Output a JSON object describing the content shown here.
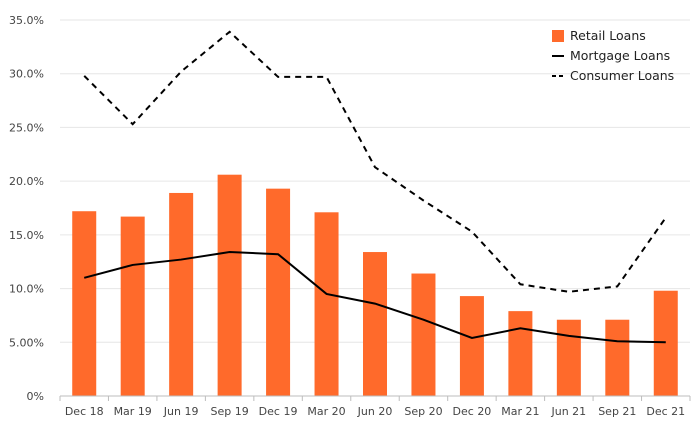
{
  "chart_data": {
    "type": "bar",
    "categories": [
      "Dec 18",
      "Mar 19",
      "Jun 19",
      "Sep 19",
      "Dec 19",
      "Mar 20",
      "Jun 20",
      "Sep 20",
      "Dec 20",
      "Mar 21",
      "Jun 21",
      "Sep 21",
      "Dec 21"
    ],
    "ylim": [
      0,
      35
    ],
    "yticks": [
      "0%",
      "5.00%",
      "10.0%",
      "15.0%",
      "20.0%",
      "25.0%",
      "30.0%",
      "35.0%"
    ],
    "grid": true,
    "legend_position": "top-right",
    "series": [
      {
        "name": "Retail Loans",
        "kind": "bar",
        "color": "#ff6a2b",
        "values": [
          17.2,
          16.7,
          18.9,
          20.6,
          19.3,
          17.1,
          13.4,
          11.4,
          9.3,
          7.9,
          7.1,
          7.1,
          9.8
        ]
      },
      {
        "name": "Mortgage Loans",
        "kind": "line",
        "style": "solid",
        "color": "#000000",
        "values": [
          11.0,
          12.2,
          12.7,
          13.4,
          13.2,
          9.5,
          8.6,
          7.1,
          5.4,
          6.3,
          5.6,
          5.1,
          5.0
        ]
      },
      {
        "name": "Consumer Loans",
        "kind": "line",
        "style": "dashed",
        "color": "#000000",
        "values": [
          29.8,
          25.3,
          30.2,
          33.9,
          29.7,
          29.7,
          21.3,
          18.2,
          15.3,
          10.4,
          9.7,
          10.2,
          16.6
        ]
      }
    ]
  }
}
